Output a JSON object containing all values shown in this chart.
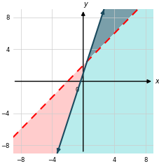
{
  "xlim": [
    -9,
    9
  ],
  "ylim": [
    -9,
    9
  ],
  "xticks": [
    -8,
    -4,
    4,
    8
  ],
  "yticks": [
    -8,
    -4,
    4,
    8
  ],
  "line1_slope": 1,
  "line1_intercept": 2,
  "line1_color": "#ff0000",
  "line2_slope": 3,
  "line2_intercept": 1,
  "line2_color": "#1a4a5e",
  "shade_pink": "#ffcccc",
  "shade_gray": "#7a9faa",
  "shade_overlap": "#b8ecec",
  "shade_alpha": 1.0,
  "background": "#ffffff",
  "grid_color": "#cccccc",
  "figsize": [
    2.28,
    2.34
  ],
  "dpi": 100
}
